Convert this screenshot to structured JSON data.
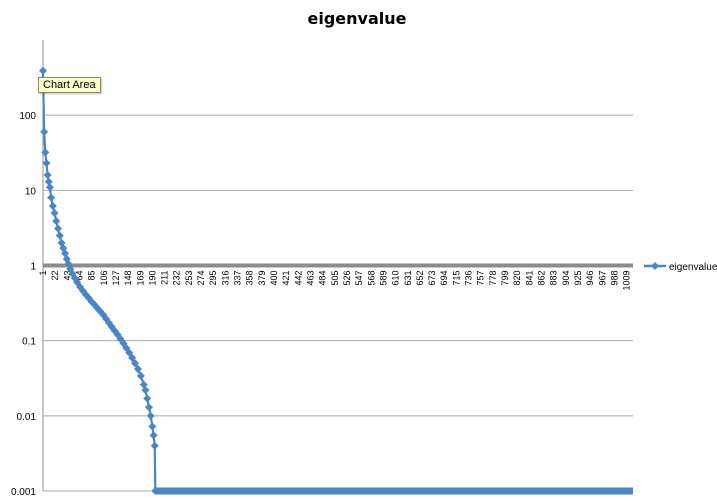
{
  "chart_data": {
    "type": "line",
    "title": "eigenvalue",
    "xlabel": "",
    "ylabel": "",
    "y_scale": "log",
    "ylim": [
      0.001,
      1000
    ],
    "y_ticks": [
      {
        "value": 0.001,
        "label": "0.001"
      },
      {
        "value": 0.01,
        "label": "0.01"
      },
      {
        "value": 0.1,
        "label": "0.1"
      },
      {
        "value": 1,
        "label": "1"
      },
      {
        "value": 10,
        "label": "10"
      },
      {
        "value": 100,
        "label": "100"
      }
    ],
    "x_range": [
      1,
      1020
    ],
    "x_tick_labels": [
      "1",
      "22",
      "43",
      "64",
      "85",
      "106",
      "127",
      "148",
      "169",
      "190",
      "211",
      "232",
      "253",
      "274",
      "295",
      "316",
      "337",
      "358",
      "379",
      "400",
      "421",
      "442",
      "463",
      "484",
      "505",
      "526",
      "547",
      "568",
      "589",
      "610",
      "631",
      "652",
      "673",
      "694",
      "715",
      "736",
      "757",
      "778",
      "799",
      "820",
      "841",
      "862",
      "883",
      "904",
      "925",
      "946",
      "967",
      "988",
      "1009"
    ],
    "grid": true,
    "legend_position": "right",
    "series": [
      {
        "name": "eigenvalue",
        "color": "#4a86c5",
        "marker": "diamond",
        "points": [
          [
            1,
            390
          ],
          [
            3,
            60
          ],
          [
            5,
            32
          ],
          [
            7,
            23
          ],
          [
            9,
            16
          ],
          [
            11,
            13
          ],
          [
            13,
            11
          ],
          [
            15,
            8
          ],
          [
            18,
            6.2
          ],
          [
            21,
            5
          ],
          [
            24,
            3.9
          ],
          [
            27,
            3.1
          ],
          [
            30,
            2.5
          ],
          [
            33,
            2.0
          ],
          [
            36,
            1.7
          ],
          [
            39,
            1.45
          ],
          [
            42,
            1.22
          ],
          [
            45,
            1.05
          ],
          [
            48,
            0.9
          ],
          [
            52,
            0.78
          ],
          [
            56,
            0.68
          ],
          [
            60,
            0.6
          ],
          [
            65,
            0.52
          ],
          [
            70,
            0.46
          ],
          [
            75,
            0.41
          ],
          [
            80,
            0.37
          ],
          [
            85,
            0.33
          ],
          [
            90,
            0.3
          ],
          [
            95,
            0.27
          ],
          [
            100,
            0.245
          ],
          [
            105,
            0.22
          ],
          [
            110,
            0.195
          ],
          [
            115,
            0.172
          ],
          [
            120,
            0.152
          ],
          [
            125,
            0.135
          ],
          [
            130,
            0.12
          ],
          [
            135,
            0.105
          ],
          [
            140,
            0.092
          ],
          [
            145,
            0.08
          ],
          [
            150,
            0.069
          ],
          [
            155,
            0.059
          ],
          [
            160,
            0.05
          ],
          [
            165,
            0.042
          ],
          [
            170,
            0.034
          ],
          [
            175,
            0.026
          ],
          [
            178,
            0.022
          ],
          [
            181,
            0.017
          ],
          [
            184,
            0.013
          ],
          [
            187,
            0.01
          ],
          [
            190,
            0.0072
          ],
          [
            192,
            0.0055
          ],
          [
            194,
            0.004
          ],
          [
            195,
            0.001
          ],
          [
            1020,
            0.001
          ]
        ]
      }
    ]
  },
  "tooltip": {
    "text": "Chart Area"
  },
  "colors": {
    "series": "#4a86c5",
    "grid": "#a9a9a9",
    "highlight_line": "#8c8c8c"
  }
}
